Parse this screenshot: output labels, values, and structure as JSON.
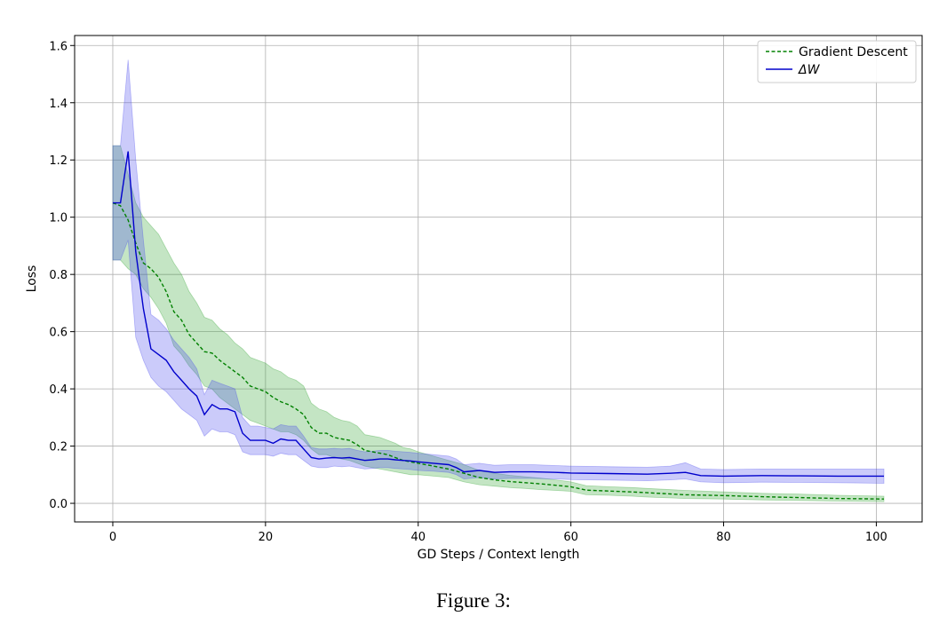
{
  "caption": "Figure 3:",
  "chart_data": {
    "type": "line",
    "title": "",
    "xlabel": "GD Steps / Context length",
    "ylabel": "Loss",
    "xlim": [
      -5,
      106
    ],
    "ylim": [
      -0.065,
      1.635
    ],
    "xticks": [
      0,
      20,
      40,
      60,
      80,
      100
    ],
    "yticks": [
      0.0,
      0.2,
      0.4,
      0.6,
      0.8,
      1.0,
      1.2,
      1.4,
      1.6
    ],
    "ytick_labels": [
      "0.0",
      "0.2",
      "0.4",
      "0.6",
      "0.8",
      "1.0",
      "1.2",
      "1.4",
      "1.6"
    ],
    "grid": true,
    "legend_position": "top-right",
    "series": [
      {
        "name": "Gradient Descent",
        "color": "#008000",
        "fill_color": "#2ca02c",
        "style": "dashed",
        "points": [
          [
            0,
            1.05
          ],
          [
            1,
            1.04
          ],
          [
            2,
            0.99
          ],
          [
            3,
            0.91
          ],
          [
            4,
            0.84
          ],
          [
            5,
            0.82
          ],
          [
            6,
            0.79
          ],
          [
            7,
            0.74
          ],
          [
            8,
            0.67
          ],
          [
            9,
            0.64
          ],
          [
            10,
            0.59
          ],
          [
            11,
            0.56
          ],
          [
            12,
            0.53
          ],
          [
            13,
            0.525
          ],
          [
            14,
            0.5
          ],
          [
            15,
            0.48
          ],
          [
            16,
            0.46
          ],
          [
            17,
            0.44
          ],
          [
            18,
            0.41
          ],
          [
            19,
            0.4
          ],
          [
            20,
            0.39
          ],
          [
            21,
            0.37
          ],
          [
            22,
            0.355
          ],
          [
            23,
            0.345
          ],
          [
            24,
            0.33
          ],
          [
            25,
            0.31
          ],
          [
            26,
            0.265
          ],
          [
            27,
            0.245
          ],
          [
            28,
            0.245
          ],
          [
            29,
            0.23
          ],
          [
            30,
            0.225
          ],
          [
            31,
            0.22
          ],
          [
            32,
            0.205
          ],
          [
            33,
            0.185
          ],
          [
            34,
            0.18
          ],
          [
            35,
            0.175
          ],
          [
            36,
            0.17
          ],
          [
            37,
            0.16
          ],
          [
            38,
            0.15
          ],
          [
            39,
            0.145
          ],
          [
            40,
            0.14
          ],
          [
            42,
            0.13
          ],
          [
            44,
            0.12
          ],
          [
            46,
            0.105
          ],
          [
            48,
            0.09
          ],
          [
            50,
            0.082
          ],
          [
            52,
            0.076
          ],
          [
            54,
            0.072
          ],
          [
            56,
            0.068
          ],
          [
            58,
            0.063
          ],
          [
            60,
            0.058
          ],
          [
            62,
            0.046
          ],
          [
            65,
            0.043
          ],
          [
            68,
            0.04
          ],
          [
            70,
            0.037
          ],
          [
            75,
            0.03
          ],
          [
            80,
            0.027
          ],
          [
            85,
            0.023
          ],
          [
            90,
            0.02
          ],
          [
            95,
            0.017
          ],
          [
            101,
            0.015
          ]
        ],
        "band": [
          [
            0,
            0.85,
            1.25
          ],
          [
            1,
            0.85,
            1.25
          ],
          [
            2,
            0.82,
            1.15
          ],
          [
            3,
            0.8,
            1.05
          ],
          [
            4,
            0.75,
            1.0
          ],
          [
            5,
            0.72,
            0.97
          ],
          [
            6,
            0.68,
            0.94
          ],
          [
            7,
            0.63,
            0.89
          ],
          [
            8,
            0.55,
            0.84
          ],
          [
            9,
            0.52,
            0.8
          ],
          [
            10,
            0.48,
            0.74
          ],
          [
            11,
            0.45,
            0.7
          ],
          [
            12,
            0.41,
            0.65
          ],
          [
            13,
            0.4,
            0.64
          ],
          [
            14,
            0.37,
            0.61
          ],
          [
            15,
            0.35,
            0.59
          ],
          [
            16,
            0.33,
            0.56
          ],
          [
            17,
            0.31,
            0.54
          ],
          [
            18,
            0.29,
            0.51
          ],
          [
            19,
            0.28,
            0.5
          ],
          [
            20,
            0.27,
            0.49
          ],
          [
            21,
            0.26,
            0.47
          ],
          [
            22,
            0.25,
            0.46
          ],
          [
            23,
            0.25,
            0.44
          ],
          [
            24,
            0.24,
            0.43
          ],
          [
            25,
            0.22,
            0.41
          ],
          [
            26,
            0.19,
            0.35
          ],
          [
            27,
            0.17,
            0.33
          ],
          [
            28,
            0.17,
            0.32
          ],
          [
            29,
            0.16,
            0.3
          ],
          [
            30,
            0.155,
            0.29
          ],
          [
            31,
            0.15,
            0.285
          ],
          [
            32,
            0.14,
            0.27
          ],
          [
            33,
            0.13,
            0.24
          ],
          [
            34,
            0.125,
            0.235
          ],
          [
            35,
            0.12,
            0.23
          ],
          [
            36,
            0.115,
            0.22
          ],
          [
            37,
            0.11,
            0.21
          ],
          [
            38,
            0.105,
            0.195
          ],
          [
            39,
            0.1,
            0.19
          ],
          [
            40,
            0.1,
            0.18
          ],
          [
            42,
            0.095,
            0.165
          ],
          [
            44,
            0.09,
            0.15
          ],
          [
            46,
            0.075,
            0.135
          ],
          [
            48,
            0.065,
            0.115
          ],
          [
            50,
            0.06,
            0.105
          ],
          [
            52,
            0.055,
            0.098
          ],
          [
            54,
            0.052,
            0.093
          ],
          [
            56,
            0.048,
            0.088
          ],
          [
            58,
            0.045,
            0.082
          ],
          [
            60,
            0.042,
            0.075
          ],
          [
            62,
            0.03,
            0.062
          ],
          [
            65,
            0.028,
            0.058
          ],
          [
            68,
            0.025,
            0.055
          ],
          [
            70,
            0.022,
            0.052
          ],
          [
            75,
            0.017,
            0.045
          ],
          [
            80,
            0.015,
            0.04
          ],
          [
            85,
            0.012,
            0.035
          ],
          [
            90,
            0.01,
            0.032
          ],
          [
            95,
            0.008,
            0.028
          ],
          [
            101,
            0.006,
            0.025
          ]
        ]
      },
      {
        "name": "ΔW",
        "color": "#0000cc",
        "fill_color": "#4444ee",
        "style": "solid",
        "points": [
          [
            0,
            1.05
          ],
          [
            1,
            1.05
          ],
          [
            2,
            1.23
          ],
          [
            3,
            0.88
          ],
          [
            4,
            0.68
          ],
          [
            5,
            0.54
          ],
          [
            6,
            0.52
          ],
          [
            7,
            0.5
          ],
          [
            8,
            0.46
          ],
          [
            9,
            0.43
          ],
          [
            10,
            0.4
          ],
          [
            11,
            0.375
          ],
          [
            12,
            0.31
          ],
          [
            13,
            0.345
          ],
          [
            14,
            0.33
          ],
          [
            15,
            0.33
          ],
          [
            16,
            0.32
          ],
          [
            17,
            0.245
          ],
          [
            18,
            0.22
          ],
          [
            19,
            0.22
          ],
          [
            20,
            0.22
          ],
          [
            21,
            0.21
          ],
          [
            22,
            0.225
          ],
          [
            23,
            0.22
          ],
          [
            24,
            0.22
          ],
          [
            25,
            0.19
          ],
          [
            26,
            0.16
          ],
          [
            27,
            0.155
          ],
          [
            28,
            0.158
          ],
          [
            29,
            0.16
          ],
          [
            30,
            0.158
          ],
          [
            31,
            0.16
          ],
          [
            32,
            0.155
          ],
          [
            33,
            0.15
          ],
          [
            34,
            0.152
          ],
          [
            35,
            0.155
          ],
          [
            36,
            0.155
          ],
          [
            37,
            0.152
          ],
          [
            38,
            0.15
          ],
          [
            39,
            0.148
          ],
          [
            40,
            0.145
          ],
          [
            42,
            0.14
          ],
          [
            44,
            0.135
          ],
          [
            45,
            0.125
          ],
          [
            46,
            0.11
          ],
          [
            48,
            0.115
          ],
          [
            50,
            0.108
          ],
          [
            52,
            0.11
          ],
          [
            55,
            0.11
          ],
          [
            58,
            0.108
          ],
          [
            60,
            0.106
          ],
          [
            65,
            0.104
          ],
          [
            70,
            0.102
          ],
          [
            73,
            0.105
          ],
          [
            75,
            0.108
          ],
          [
            77,
            0.097
          ],
          [
            80,
            0.095
          ],
          [
            85,
            0.097
          ],
          [
            90,
            0.096
          ],
          [
            95,
            0.095
          ],
          [
            101,
            0.095
          ]
        ],
        "band": [
          [
            0,
            0.85,
            1.25
          ],
          [
            1,
            0.85,
            1.25
          ],
          [
            2,
            0.92,
            1.55
          ],
          [
            3,
            0.58,
            1.2
          ],
          [
            4,
            0.5,
            0.92
          ],
          [
            5,
            0.44,
            0.66
          ],
          [
            6,
            0.41,
            0.64
          ],
          [
            7,
            0.39,
            0.61
          ],
          [
            8,
            0.36,
            0.57
          ],
          [
            9,
            0.33,
            0.54
          ],
          [
            10,
            0.31,
            0.51
          ],
          [
            11,
            0.29,
            0.47
          ],
          [
            12,
            0.235,
            0.38
          ],
          [
            13,
            0.26,
            0.43
          ],
          [
            14,
            0.25,
            0.42
          ],
          [
            15,
            0.25,
            0.41
          ],
          [
            16,
            0.24,
            0.4
          ],
          [
            17,
            0.18,
            0.3
          ],
          [
            18,
            0.17,
            0.27
          ],
          [
            19,
            0.17,
            0.27
          ],
          [
            20,
            0.17,
            0.265
          ],
          [
            21,
            0.165,
            0.26
          ],
          [
            22,
            0.175,
            0.275
          ],
          [
            23,
            0.17,
            0.27
          ],
          [
            24,
            0.17,
            0.27
          ],
          [
            25,
            0.15,
            0.235
          ],
          [
            26,
            0.13,
            0.195
          ],
          [
            27,
            0.125,
            0.19
          ],
          [
            28,
            0.125,
            0.19
          ],
          [
            29,
            0.13,
            0.192
          ],
          [
            30,
            0.128,
            0.19
          ],
          [
            31,
            0.13,
            0.192
          ],
          [
            32,
            0.125,
            0.185
          ],
          [
            33,
            0.12,
            0.18
          ],
          [
            34,
            0.122,
            0.182
          ],
          [
            35,
            0.125,
            0.185
          ],
          [
            36,
            0.125,
            0.185
          ],
          [
            37,
            0.122,
            0.182
          ],
          [
            38,
            0.12,
            0.18
          ],
          [
            39,
            0.118,
            0.178
          ],
          [
            40,
            0.115,
            0.175
          ],
          [
            42,
            0.112,
            0.17
          ],
          [
            44,
            0.108,
            0.165
          ],
          [
            45,
            0.1,
            0.155
          ],
          [
            46,
            0.085,
            0.135
          ],
          [
            48,
            0.09,
            0.14
          ],
          [
            50,
            0.085,
            0.133
          ],
          [
            52,
            0.087,
            0.135
          ],
          [
            55,
            0.087,
            0.135
          ],
          [
            58,
            0.085,
            0.132
          ],
          [
            60,
            0.083,
            0.13
          ],
          [
            65,
            0.081,
            0.128
          ],
          [
            70,
            0.079,
            0.126
          ],
          [
            73,
            0.082,
            0.13
          ],
          [
            75,
            0.085,
            0.142
          ],
          [
            77,
            0.075,
            0.12
          ],
          [
            80,
            0.072,
            0.118
          ],
          [
            85,
            0.074,
            0.12
          ],
          [
            90,
            0.073,
            0.12
          ],
          [
            95,
            0.072,
            0.12
          ],
          [
            101,
            0.07,
            0.12
          ]
        ]
      }
    ]
  }
}
